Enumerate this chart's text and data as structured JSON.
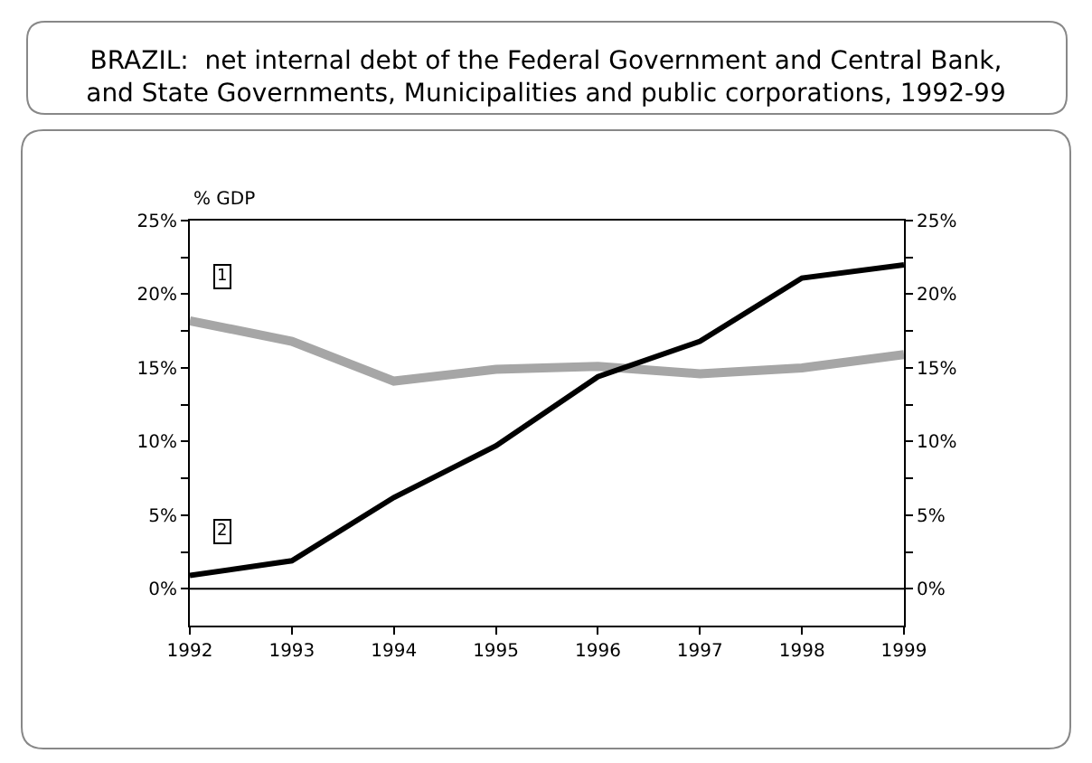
{
  "chart_data": {
    "type": "line",
    "title": "BRAZIL:  net internal debt of the Federal Government and Central Bank,\nand State Governments, Municipalities and public corporations, 1992-99",
    "ylabel": "% GDP",
    "x": [
      1992,
      1993,
      1994,
      1995,
      1996,
      1997,
      1998,
      1999
    ],
    "series": [
      {
        "name": "1",
        "color": "#a6a6a6",
        "values": [
          18.2,
          16.8,
          14.1,
          14.9,
          15.1,
          14.6,
          15.0,
          15.9
        ]
      },
      {
        "name": "2",
        "color": "#000000",
        "values": [
          0.9,
          1.9,
          6.2,
          9.7,
          14.4,
          16.8,
          21.1,
          22.0
        ]
      }
    ],
    "xlim": [
      1992,
      1999
    ],
    "xticks": [
      1992,
      1993,
      1994,
      1995,
      1996,
      1997,
      1998,
      1999
    ],
    "ylim": [
      -2.5,
      25
    ],
    "yticks": [
      {
        "value": 0,
        "label": "0%"
      },
      {
        "value": 2.5,
        "label": null
      },
      {
        "value": 5,
        "label": "5%"
      },
      {
        "value": 7.5,
        "label": null
      },
      {
        "value": 10,
        "label": "10%"
      },
      {
        "value": 12.5,
        "label": null
      },
      {
        "value": 15,
        "label": "15%"
      },
      {
        "value": 17.5,
        "label": null
      },
      {
        "value": 20,
        "label": "20%"
      },
      {
        "value": 22.5,
        "label": null
      },
      {
        "value": 25,
        "label": "25%"
      }
    ],
    "y2lim": [
      -2.5,
      25
    ],
    "y2ticks": [
      {
        "value": 0,
        "label": "0%"
      },
      {
        "value": 2.5,
        "label": null
      },
      {
        "value": 5,
        "label": "5%"
      },
      {
        "value": 7.5,
        "label": null
      },
      {
        "value": 10,
        "label": "10%"
      },
      {
        "value": 12.5,
        "label": null
      },
      {
        "value": 15,
        "label": "15%"
      },
      {
        "value": 17.5,
        "label": null
      },
      {
        "value": 20,
        "label": "20%"
      },
      {
        "value": 22.5,
        "label": null
      },
      {
        "value": 25,
        "label": "25%"
      }
    ],
    "ref_lines": [
      {
        "axis": "y",
        "value": 0,
        "color": "#000000"
      }
    ],
    "legend": false,
    "marker": "none",
    "line_style": "solid"
  }
}
